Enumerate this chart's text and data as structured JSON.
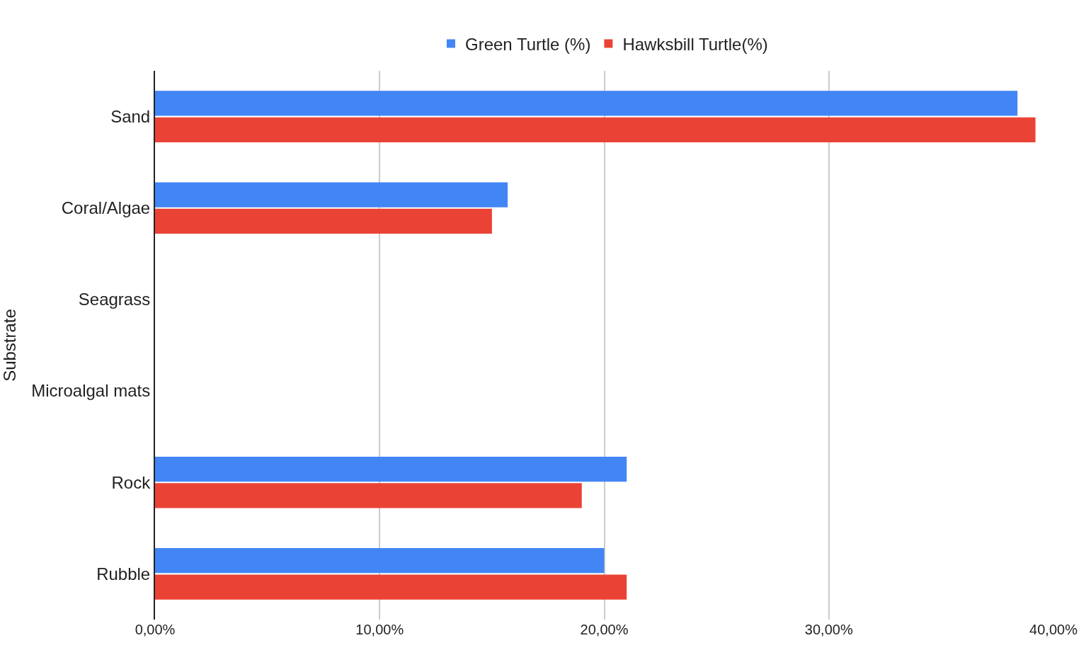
{
  "chart_data": {
    "type": "bar",
    "orientation": "horizontal",
    "ylabel": "Substrate",
    "categories": [
      "Sand",
      "Coral/Algae",
      "Seagrass",
      "Microalgal mats",
      "Rock",
      "Rubble"
    ],
    "series": [
      {
        "name": "Green Turtle (%)",
        "color": "#4285f4",
        "values": [
          38.4,
          15.7,
          0,
          0,
          21.0,
          20.0
        ]
      },
      {
        "name": "Hawksbill Turtle(%)",
        "color": "#ea4335",
        "values": [
          39.2,
          15.0,
          0,
          0,
          19.0,
          21.0
        ]
      }
    ],
    "xlim": [
      0,
      40
    ],
    "xticks": [
      {
        "value": 0,
        "label": "0,00%"
      },
      {
        "value": 10,
        "label": "10,00%"
      },
      {
        "value": 20,
        "label": "20,00%"
      },
      {
        "value": 30,
        "label": "30,00%"
      },
      {
        "value": 40,
        "label": "40,00%"
      }
    ],
    "grid": "x",
    "legend": "top"
  }
}
